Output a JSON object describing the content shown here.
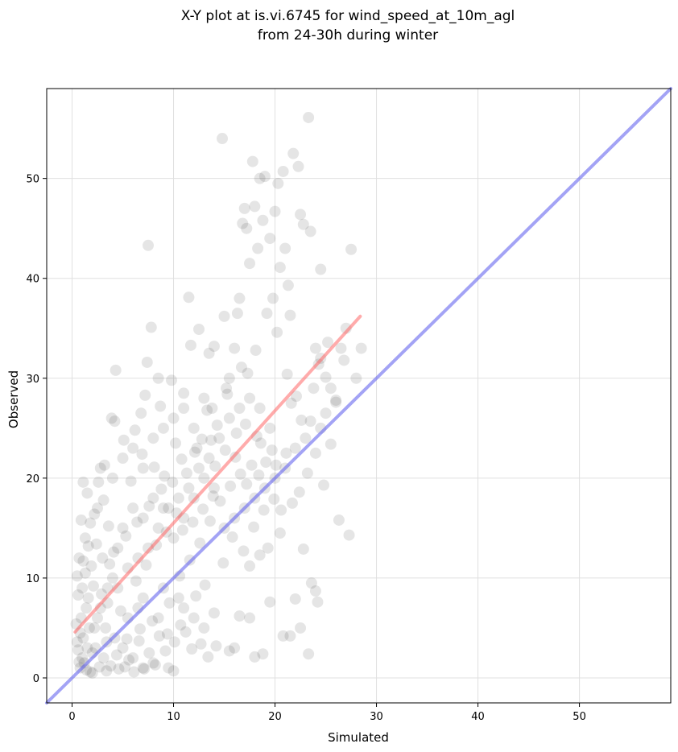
{
  "chart_data": {
    "type": "scatter",
    "title_line1": "X-Y plot at is.vi.6745 for wind_speed_at_10m_agl",
    "title_line2": "from 24-30h during winter",
    "xlabel": "Simulated",
    "ylabel": "Observed",
    "xlim": [
      -2.5,
      59
    ],
    "ylim": [
      -2.5,
      59
    ],
    "xticks": [
      "0",
      "10",
      "20",
      "30",
      "40",
      "50"
    ],
    "yticks": [
      "0",
      "10",
      "20",
      "30",
      "40",
      "50"
    ],
    "grid": true,
    "point_color": "#000000",
    "point_opacity": 0.1,
    "fit_line": {
      "x": [
        0.3,
        28.4
      ],
      "y": [
        4.6,
        36.2
      ],
      "color": "#ff6666"
    },
    "identity_line": {
      "x": [
        -2.5,
        59
      ],
      "y": [
        -2.5,
        59
      ],
      "color": "#6666ee"
    },
    "points": [
      [
        1,
        2
      ],
      [
        1.2,
        1.5
      ],
      [
        1.5,
        3
      ],
      [
        0.8,
        1
      ],
      [
        2,
        2.5
      ],
      [
        1.1,
        4
      ],
      [
        0.9,
        6
      ],
      [
        1.4,
        7
      ],
      [
        2.2,
        5
      ],
      [
        1.6,
        8
      ],
      [
        1,
        9
      ],
      [
        0.7,
        12
      ],
      [
        1.3,
        14
      ],
      [
        1.8,
        15.5
      ],
      [
        0.9,
        15.8
      ],
      [
        1.1,
        19.6
      ],
      [
        1.5,
        18.5
      ],
      [
        2.6,
        19.6
      ],
      [
        2.8,
        21
      ],
      [
        3.2,
        21.3
      ],
      [
        2.5,
        17
      ],
      [
        3,
        12
      ],
      [
        3.5,
        9
      ],
      [
        4,
        10
      ],
      [
        2.8,
        7
      ],
      [
        3.3,
        5
      ],
      [
        4.2,
        4
      ],
      [
        5,
        3
      ],
      [
        6,
        2
      ],
      [
        7,
        1
      ],
      [
        8,
        1.5
      ],
      [
        9.5,
        1
      ],
      [
        10,
        0.7
      ],
      [
        5.5,
        6
      ],
      [
        6.5,
        7
      ],
      [
        7,
        8
      ],
      [
        8.5,
        6
      ],
      [
        9,
        9
      ],
      [
        10.5,
        8
      ],
      [
        11,
        7
      ],
      [
        12,
        6
      ],
      [
        13,
        5
      ],
      [
        14,
        6.5
      ],
      [
        4.5,
        13
      ],
      [
        5,
        15
      ],
      [
        6,
        17
      ],
      [
        7,
        16
      ],
      [
        8,
        18
      ],
      [
        9,
        17
      ],
      [
        10,
        14
      ],
      [
        11,
        16
      ],
      [
        12,
        18
      ],
      [
        13,
        20
      ],
      [
        14,
        19
      ],
      [
        4,
        20
      ],
      [
        5,
        22
      ],
      [
        6,
        23
      ],
      [
        7,
        21
      ],
      [
        8,
        24
      ],
      [
        9,
        25
      ],
      [
        10,
        26
      ],
      [
        11,
        27
      ],
      [
        12,
        25
      ],
      [
        13,
        28
      ],
      [
        4.2,
        25.7
      ],
      [
        4.3,
        30.8
      ],
      [
        7.5,
        43.3
      ],
      [
        7.8,
        35.1
      ],
      [
        7.4,
        31.6
      ],
      [
        8.5,
        30
      ],
      [
        9.8,
        29.8
      ],
      [
        11,
        28.5
      ],
      [
        11.5,
        38.1
      ],
      [
        11.7,
        33.3
      ],
      [
        12.5,
        34.9
      ],
      [
        13.5,
        32.5
      ],
      [
        14,
        33.2
      ],
      [
        14.8,
        54
      ],
      [
        15,
        36.2
      ],
      [
        15.5,
        30
      ],
      [
        16,
        33
      ],
      [
        16.3,
        36.5
      ],
      [
        16.5,
        38
      ],
      [
        16.8,
        45.5
      ],
      [
        17,
        47
      ],
      [
        17.2,
        45
      ],
      [
        17.5,
        41.5
      ],
      [
        17.8,
        51.7
      ],
      [
        18,
        47.2
      ],
      [
        18.3,
        43
      ],
      [
        18.5,
        50
      ],
      [
        18.8,
        45.8
      ],
      [
        19,
        50.2
      ],
      [
        19.5,
        44
      ],
      [
        20,
        46.7
      ],
      [
        20.3,
        49.5
      ],
      [
        20.5,
        41.1
      ],
      [
        20.8,
        50.7
      ],
      [
        21,
        43
      ],
      [
        21.3,
        39.3
      ],
      [
        21.5,
        36.3
      ],
      [
        21.8,
        52.5
      ],
      [
        22.3,
        51.2
      ],
      [
        22.5,
        46.4
      ],
      [
        22.8,
        45.4
      ],
      [
        23.3,
        56.1
      ],
      [
        23.5,
        44.7
      ],
      [
        24,
        33
      ],
      [
        24.5,
        32
      ],
      [
        24.5,
        40.9
      ],
      [
        25,
        30.1
      ],
      [
        25.5,
        29
      ],
      [
        26,
        27.8
      ],
      [
        26.5,
        33
      ],
      [
        27,
        35
      ],
      [
        27.5,
        42.9
      ],
      [
        28,
        30
      ],
      [
        28.5,
        33
      ],
      [
        26.3,
        15.8
      ],
      [
        27.3,
        14.3
      ],
      [
        24.8,
        19.3
      ],
      [
        24,
        22.5
      ],
      [
        23.5,
        25.7
      ],
      [
        22.8,
        12.9
      ],
      [
        23.6,
        9.5
      ],
      [
        24,
        8.7
      ],
      [
        24.2,
        7.6
      ],
      [
        22,
        7.9
      ],
      [
        21.5,
        4.2
      ],
      [
        20.8,
        4.2
      ],
      [
        22.5,
        5
      ],
      [
        23.3,
        2.4
      ],
      [
        19.5,
        7.6
      ],
      [
        18.8,
        2.4
      ],
      [
        18,
        2.1
      ],
      [
        17.5,
        6
      ],
      [
        16.5,
        6.2
      ],
      [
        16,
        3
      ],
      [
        15.5,
        2.7
      ],
      [
        20.5,
        14.5
      ],
      [
        19.3,
        13
      ],
      [
        18.5,
        12.3
      ],
      [
        17.5,
        11.2
      ],
      [
        20,
        20
      ],
      [
        19,
        19
      ],
      [
        18,
        18
      ],
      [
        17,
        17
      ],
      [
        16,
        16
      ],
      [
        15,
        15
      ],
      [
        21,
        21
      ],
      [
        22,
        23
      ],
      [
        23,
        24
      ],
      [
        24.5,
        25
      ],
      [
        25,
        26.5
      ],
      [
        25.5,
        23.4
      ],
      [
        26,
        27.6
      ],
      [
        19.5,
        25
      ],
      [
        18.5,
        27
      ],
      [
        17.5,
        28
      ],
      [
        16.5,
        27
      ],
      [
        15.5,
        26
      ],
      [
        14.5,
        24
      ],
      [
        13.5,
        22
      ],
      [
        12.5,
        21
      ],
      [
        11.5,
        19
      ],
      [
        10.5,
        18
      ],
      [
        9.5,
        17
      ],
      [
        8.5,
        15
      ],
      [
        7.5,
        13
      ],
      [
        6.5,
        12
      ],
      [
        5.5,
        11
      ],
      [
        4.5,
        9
      ],
      [
        3.5,
        7.5
      ],
      [
        2.5,
        6
      ],
      [
        1.7,
        5
      ],
      [
        2.3,
        3
      ],
      [
        3.1,
        2
      ],
      [
        3.8,
        1.2
      ],
      [
        2,
        0.5
      ],
      [
        1.4,
        0.8
      ],
      [
        0.6,
        2.8
      ],
      [
        0.8,
        4.5
      ],
      [
        1.9,
        11.2
      ],
      [
        2.4,
        13.4
      ],
      [
        3.6,
        15.2
      ],
      [
        5.8,
        19.7
      ],
      [
        6.2,
        24.8
      ],
      [
        6.8,
        26.5
      ],
      [
        7.2,
        28.3
      ],
      [
        8.7,
        27.2
      ],
      [
        10.2,
        23.5
      ],
      [
        12.3,
        23
      ],
      [
        13.8,
        27
      ],
      [
        15.2,
        29
      ],
      [
        16.7,
        31.1
      ],
      [
        17.3,
        30.5
      ],
      [
        18.1,
        32.8
      ],
      [
        19.2,
        36.5
      ],
      [
        19.8,
        38
      ],
      [
        20.2,
        34.6
      ],
      [
        21.2,
        30.4
      ],
      [
        22.1,
        28.2
      ],
      [
        23.8,
        29
      ],
      [
        24.3,
        31.4
      ],
      [
        25.2,
        33.6
      ],
      [
        26.8,
        31.8
      ],
      [
        21.6,
        27.5
      ],
      [
        22.6,
        25.8
      ],
      [
        23.2,
        20.5
      ],
      [
        20.6,
        16.8
      ],
      [
        21.7,
        17.5
      ],
      [
        22.4,
        18.6
      ],
      [
        19.7,
        22.8
      ],
      [
        18.6,
        23.5
      ],
      [
        17.7,
        21.3
      ],
      [
        16.6,
        20.4
      ],
      [
        15.6,
        19.2
      ],
      [
        14.6,
        17.7
      ],
      [
        13.6,
        15.7
      ],
      [
        12.6,
        13.5
      ],
      [
        11.6,
        11.8
      ],
      [
        10.6,
        10.2
      ],
      [
        9.6,
        7.5
      ],
      [
        8.6,
        4.2
      ],
      [
        7.6,
        2.5
      ],
      [
        6.6,
        3.7
      ],
      [
        5.6,
        1.8
      ],
      [
        4.6,
        0.9
      ],
      [
        3.4,
        3.6
      ],
      [
        4.8,
        6.7
      ],
      [
        6.3,
        9.7
      ],
      [
        7.3,
        11.3
      ],
      [
        8.3,
        13.3
      ],
      [
        9.3,
        14.6
      ],
      [
        10.3,
        16.5
      ],
      [
        11.3,
        20.5
      ],
      [
        12.8,
        23.9
      ],
      [
        13.3,
        26.8
      ],
      [
        14.3,
        25.3
      ],
      [
        15.3,
        28.4
      ],
      [
        16.2,
        24.5
      ],
      [
        17.1,
        25.4
      ],
      [
        18.2,
        24.2
      ],
      [
        19.1,
        21.6
      ],
      [
        20.1,
        21.3
      ],
      [
        21.1,
        22.5
      ],
      [
        14.9,
        11.5
      ],
      [
        13.1,
        9.3
      ],
      [
        12.2,
        8.2
      ],
      [
        11.2,
        4.6
      ],
      [
        10.1,
        3.6
      ],
      [
        9.2,
        2.7
      ],
      [
        8.2,
        1.3
      ],
      [
        7.1,
        0.9
      ],
      [
        6.1,
        0.6
      ],
      [
        5.2,
        1.1
      ],
      [
        15.8,
        14.1
      ],
      [
        16.9,
        12.7
      ],
      [
        17.9,
        15.1
      ],
      [
        18.9,
        16.8
      ],
      [
        19.9,
        17.9
      ],
      [
        3.9,
        26
      ],
      [
        5.1,
        23.8
      ],
      [
        6.9,
        22.4
      ],
      [
        8.1,
        21.1
      ],
      [
        9.1,
        20.2
      ],
      [
        10.8,
        21.9
      ],
      [
        12.1,
        22.6
      ],
      [
        13.7,
        23.8
      ],
      [
        14.1,
        21.2
      ],
      [
        15.1,
        22.8
      ],
      [
        16.1,
        22.1
      ],
      [
        17.2,
        19.4
      ],
      [
        18.4,
        20.3
      ],
      [
        1.3,
        10.5
      ],
      [
        2.1,
        9.2
      ],
      [
        2.9,
        8.4
      ],
      [
        3.7,
        11.4
      ],
      [
        4.1,
        12.6
      ],
      [
        5.3,
        14.2
      ],
      [
        6.4,
        15.6
      ],
      [
        7.6,
        17.2
      ],
      [
        8.8,
        18.9
      ],
      [
        9.9,
        19.6
      ],
      [
        10.9,
        14.8
      ],
      [
        11.9,
        15.6
      ],
      [
        12.9,
        16.9
      ],
      [
        13.9,
        18.2
      ],
      [
        3.1,
        17.8
      ],
      [
        2.2,
        16.4
      ],
      [
        1.6,
        13.2
      ],
      [
        1.1,
        11.7
      ],
      [
        0.5,
        10.2
      ],
      [
        0.6,
        8.3
      ],
      [
        0.4,
        5.4
      ],
      [
        0.5,
        3.6
      ],
      [
        0.7,
        1.6
      ],
      [
        1.8,
        0.6
      ],
      [
        2.7,
        1.1
      ],
      [
        3.4,
        0.7
      ],
      [
        4.4,
        2.3
      ],
      [
        5.4,
        3.9
      ],
      [
        6.7,
        4.9
      ],
      [
        7.9,
        5.7
      ],
      [
        9.4,
        4.4
      ],
      [
        10.7,
        5.3
      ],
      [
        11.8,
        2.9
      ],
      [
        12.7,
        3.4
      ],
      [
        13.4,
        2.1
      ],
      [
        14.2,
        3.2
      ]
    ]
  }
}
